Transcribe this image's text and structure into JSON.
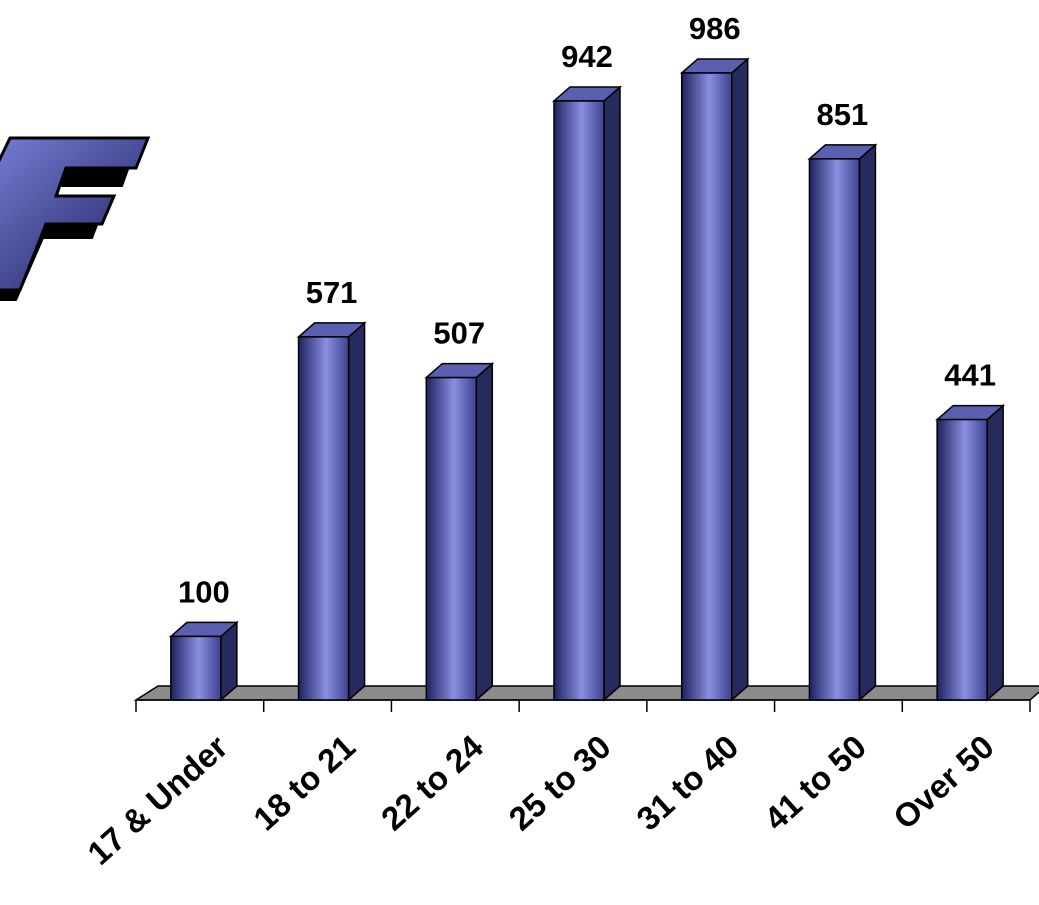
{
  "chart_data": {
    "type": "bar",
    "style": "3d-cylinder-box",
    "categories": [
      "17 & Under",
      "18 to 21",
      "22 to 24",
      "25 to 30",
      "31 to 40",
      "41 to 50",
      "Over 50"
    ],
    "values": [
      100,
      571,
      507,
      942,
      986,
      851,
      441
    ],
    "data_labels": [
      "100",
      "571",
      "507",
      "942",
      "986",
      "851",
      "441"
    ],
    "title": "",
    "xlabel": "",
    "ylabel": "",
    "ylim": [
      0,
      1000
    ],
    "grid": false,
    "legend": "none",
    "colors": {
      "bar_dark": "#1e2260",
      "bar_light": "#8a8fe0",
      "bar_top": "#5a5fb0",
      "bar_side": "#262a5c",
      "floor": "#8c8c8c",
      "text": "#000000"
    }
  },
  "logo": {
    "icon": "stylized-f-logo",
    "colors": {
      "front": "#3a3f9a",
      "shadow": "#000000"
    }
  }
}
